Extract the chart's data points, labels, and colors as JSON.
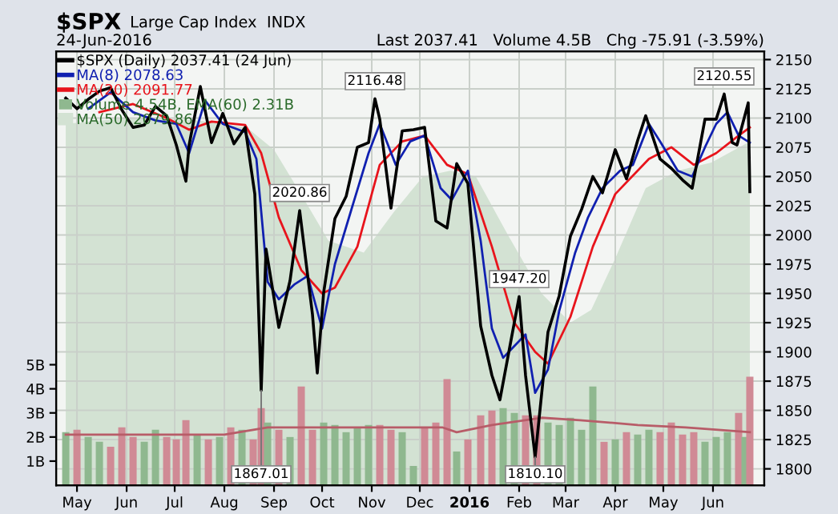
{
  "chart_data": {
    "type": "line",
    "title": "$SPX",
    "subtitle": "Large Cap Index  INDX",
    "annotations": [
      "24-Jun-2016",
      "Last 2037.41",
      "Volume 4.5B",
      "Chg -75.91 (-3.59%)",
      {
        "text": "1867.01",
        "x": "2015-08-24",
        "y": 1867.01
      },
      {
        "text": "2020.86",
        "x": "2015-09-17",
        "y": 2020.86
      },
      {
        "text": "2116.48",
        "x": "2015-11-03",
        "y": 2116.48
      },
      {
        "text": "1947.20",
        "x": "2016-02-01",
        "y": 1947.2
      },
      {
        "text": "1810.10",
        "x": "2016-02-11",
        "y": 1810.1
      },
      {
        "text": "2120.55",
        "x": "2016-06-08",
        "y": 2120.55
      }
    ],
    "xlim": [
      "2015-04-18",
      "2016-07-03"
    ],
    "xticks": [
      {
        "value": "2015-05-01",
        "label": "May"
      },
      {
        "value": "2015-06-01",
        "label": "Jun"
      },
      {
        "value": "2015-07-01",
        "label": "Jul"
      },
      {
        "value": "2015-08-01",
        "label": "Aug"
      },
      {
        "value": "2015-09-01",
        "label": "Sep"
      },
      {
        "value": "2015-10-01",
        "label": "Oct"
      },
      {
        "value": "2015-11-01",
        "label": "Nov"
      },
      {
        "value": "2015-12-01",
        "label": "Dec"
      },
      {
        "value": "2016-01-01",
        "label": "2016"
      },
      {
        "value": "2016-02-01",
        "label": "Feb"
      },
      {
        "value": "2016-03-01",
        "label": "Mar"
      },
      {
        "value": "2016-04-01",
        "label": "Apr"
      },
      {
        "value": "2016-05-01",
        "label": "May"
      },
      {
        "value": "2016-06-01",
        "label": "Jun"
      }
    ],
    "ylim": [
      1786,
      2157
    ],
    "yticks": [
      1800,
      1825,
      1850,
      1875,
      1900,
      1925,
      1950,
      1975,
      2000,
      2025,
      2050,
      2075,
      2100,
      2125,
      2150
    ],
    "y2lim": [
      0,
      18
    ],
    "y2ticks": [
      {
        "value": 1,
        "label": "1B"
      },
      {
        "value": 2,
        "label": "2B"
      },
      {
        "value": 3,
        "label": "3B"
      },
      {
        "value": 4,
        "label": "4B"
      },
      {
        "value": 5,
        "label": "5B"
      }
    ],
    "grid": true,
    "legend": "top left",
    "series": [
      {
        "name": "MA(50) 2079.86",
        "type": "area",
        "color": "#d3e2d3",
        "x": [
          "2015-04-24",
          "2015-06-01",
          "2015-07-15",
          "2015-08-15",
          "2015-09-01",
          "2015-09-20",
          "2015-10-05",
          "2015-10-27",
          "2015-11-15",
          "2015-12-03",
          "2015-12-20",
          "2016-01-05",
          "2016-01-25",
          "2016-02-15",
          "2016-03-04",
          "2016-03-17",
          "2016-04-01",
          "2016-04-20",
          "2016-05-10",
          "2016-05-31",
          "2016-06-24"
        ],
        "values": [
          2095,
          2100,
          2098,
          2092,
          2073,
          2030,
          1995,
          1985,
          2020,
          2050,
          2055,
          2050,
          2000,
          1950,
          1925,
          1936,
          1980,
          2040,
          2055,
          2062,
          2080
        ]
      },
      {
        "name": "Volume 4.54B, EMA(60) 2.31B",
        "type": "bar",
        "axis": "y2",
        "color": "#8fb88f",
        "x": [
          "2015-04-24",
          "2015-05-01",
          "2015-05-08",
          "2015-05-15",
          "2015-05-22",
          "2015-05-29",
          "2015-06-05",
          "2015-06-12",
          "2015-06-19",
          "2015-06-26",
          "2015-07-02",
          "2015-07-08",
          "2015-07-15",
          "2015-07-22",
          "2015-07-29",
          "2015-08-05",
          "2015-08-12",
          "2015-08-19",
          "2015-08-24",
          "2015-08-28",
          "2015-09-04",
          "2015-09-11",
          "2015-09-18",
          "2015-09-25",
          "2015-10-02",
          "2015-10-09",
          "2015-10-16",
          "2015-10-23",
          "2015-10-30",
          "2015-11-06",
          "2015-11-13",
          "2015-11-20",
          "2015-11-27",
          "2015-12-04",
          "2015-12-11",
          "2015-12-18",
          "2015-12-24",
          "2015-12-31",
          "2016-01-08",
          "2016-01-15",
          "2016-01-22",
          "2016-01-29",
          "2016-02-05",
          "2016-02-12",
          "2016-02-19",
          "2016-02-26",
          "2016-03-04",
          "2016-03-11",
          "2016-03-18",
          "2016-03-25",
          "2016-04-01",
          "2016-04-08",
          "2016-04-15",
          "2016-04-22",
          "2016-04-29",
          "2016-05-06",
          "2016-05-13",
          "2016-05-20",
          "2016-05-27",
          "2016-06-03",
          "2016-06-10",
          "2016-06-17",
          "2016-06-21",
          "2016-06-24"
        ],
        "values": [
          2.2,
          2.3,
          2.0,
          1.8,
          1.6,
          2.4,
          2.0,
          1.8,
          2.3,
          2.0,
          1.9,
          2.7,
          2.1,
          1.9,
          2.0,
          2.4,
          2.3,
          1.9,
          3.2,
          2.6,
          2.3,
          2.0,
          4.1,
          2.3,
          2.6,
          2.5,
          2.2,
          2.4,
          2.5,
          2.5,
          2.3,
          2.2,
          0.8,
          2.4,
          2.6,
          4.4,
          1.4,
          1.9,
          2.9,
          3.1,
          3.2,
          3.0,
          2.9,
          2.9,
          2.6,
          2.5,
          2.8,
          2.3,
          4.1,
          1.8,
          1.9,
          2.2,
          2.1,
          2.3,
          2.2,
          2.6,
          2.1,
          2.2,
          1.8,
          2.0,
          2.2,
          3.0,
          2.0,
          4.5
        ],
        "colors": [
          "#8fb88f",
          "#d08a95",
          "#8fb88f",
          "#8fb88f",
          "#d08a95",
          "#d08a95",
          "#d08a95",
          "#8fb88f",
          "#8fb88f",
          "#d08a95",
          "#d08a95",
          "#d08a95",
          "#8fb88f",
          "#d08a95",
          "#8fb88f",
          "#d08a95",
          "#8fb88f",
          "#d08a95",
          "#d08a95",
          "#8fb88f",
          "#d08a95",
          "#8fb88f",
          "#d08a95",
          "#d08a95",
          "#8fb88f",
          "#8fb88f",
          "#8fb88f",
          "#8fb88f",
          "#8fb88f",
          "#d08a95",
          "#d08a95",
          "#8fb88f",
          "#8fb88f",
          "#d08a95",
          "#d08a95",
          "#d08a95",
          "#8fb88f",
          "#d08a95",
          "#d08a95",
          "#d08a95",
          "#8fb88f",
          "#8fb88f",
          "#d08a95",
          "#d08a95",
          "#8fb88f",
          "#8fb88f",
          "#8fb88f",
          "#8fb88f",
          "#8fb88f",
          "#d08a95",
          "#8fb88f",
          "#d08a95",
          "#8fb88f",
          "#8fb88f",
          "#d08a95",
          "#d08a95",
          "#d08a95",
          "#d08a95",
          "#8fb88f",
          "#8fb88f",
          "#8fb88f",
          "#d08a95",
          "#8fb88f",
          "#d08a95"
        ]
      },
      {
        "type": "line",
        "axis": "y2",
        "color": "#b85c68",
        "x": [
          "2015-04-24",
          "2015-08-01",
          "2015-08-28",
          "2015-12-15",
          "2015-12-24",
          "2016-01-15",
          "2016-02-15",
          "2016-03-10",
          "2016-04-15",
          "2016-05-15",
          "2016-06-24"
        ],
        "values": [
          2.1,
          2.1,
          2.4,
          2.4,
          2.2,
          2.5,
          2.8,
          2.7,
          2.5,
          2.4,
          2.2
        ]
      },
      {
        "name": "MA(20) 2091.77",
        "color": "#e8141c",
        "x": [
          "2015-05-15",
          "2015-06-05",
          "2015-06-26",
          "2015-07-10",
          "2015-07-24",
          "2015-08-14",
          "2015-08-24",
          "2015-09-04",
          "2015-09-18",
          "2015-10-01",
          "2015-10-09",
          "2015-10-23",
          "2015-11-06",
          "2015-11-20",
          "2015-12-04",
          "2015-12-18",
          "2015-12-31",
          "2016-01-15",
          "2016-01-29",
          "2016-02-11",
          "2016-02-19",
          "2016-03-04",
          "2016-03-18",
          "2016-04-01",
          "2016-04-22",
          "2016-05-06",
          "2016-05-20",
          "2016-06-03",
          "2016-06-17",
          "2016-06-24"
        ],
        "values": [
          2105,
          2112,
          2100,
          2090,
          2097,
          2094,
          2070,
          2015,
          1970,
          1950,
          1955,
          1990,
          2060,
          2080,
          2085,
          2060,
          2052,
          1990,
          1925,
          1900,
          1890,
          1930,
          1990,
          2035,
          2065,
          2075,
          2060,
          2070,
          2085,
          2092
        ]
      },
      {
        "name": "MA(8) 2078.63",
        "color": "#1020b0",
        "x": [
          "2015-05-08",
          "2015-05-22",
          "2015-06-05",
          "2015-06-19",
          "2015-07-02",
          "2015-07-10",
          "2015-07-20",
          "2015-07-31",
          "2015-08-14",
          "2015-08-21",
          "2015-08-28",
          "2015-09-04",
          "2015-09-14",
          "2015-09-22",
          "2015-10-01",
          "2015-10-09",
          "2015-10-20",
          "2015-10-30",
          "2015-11-06",
          "2015-11-16",
          "2015-11-25",
          "2015-12-04",
          "2015-12-14",
          "2015-12-21",
          "2015-12-31",
          "2016-01-08",
          "2016-01-15",
          "2016-01-22",
          "2016-01-29",
          "2016-02-05",
          "2016-02-11",
          "2016-02-19",
          "2016-02-26",
          "2016-03-07",
          "2016-03-15",
          "2016-03-24",
          "2016-04-04",
          "2016-04-12",
          "2016-04-22",
          "2016-04-29",
          "2016-05-10",
          "2016-05-19",
          "2016-05-27",
          "2016-06-03",
          "2016-06-10",
          "2016-06-17",
          "2016-06-24"
        ],
        "values": [
          2108,
          2122,
          2105,
          2098,
          2095,
          2070,
          2115,
          2095,
          2088,
          2065,
          1960,
          1945,
          1958,
          1965,
          1920,
          1975,
          2025,
          2070,
          2095,
          2060,
          2080,
          2085,
          2040,
          2030,
          2055,
          1995,
          1920,
          1895,
          1905,
          1915,
          1865,
          1885,
          1935,
          1985,
          2015,
          2040,
          2055,
          2060,
          2095,
          2080,
          2055,
          2050,
          2075,
          2095,
          2105,
          2085,
          2079
        ]
      },
      {
        "name": "$SPX (Daily) 2037.41 (24 Jun)",
        "color": "#000000",
        "x": [
          "2015-04-24",
          "2015-05-01",
          "2015-05-08",
          "2015-05-15",
          "2015-05-22",
          "2015-05-29",
          "2015-06-05",
          "2015-06-12",
          "2015-06-19",
          "2015-06-26",
          "2015-07-02",
          "2015-07-08",
          "2015-07-10",
          "2015-07-17",
          "2015-07-24",
          "2015-07-31",
          "2015-08-07",
          "2015-08-14",
          "2015-08-20",
          "2015-08-24",
          "2015-08-27",
          "2015-09-04",
          "2015-09-11",
          "2015-09-17",
          "2015-09-25",
          "2015-09-28",
          "2015-10-02",
          "2015-10-09",
          "2015-10-16",
          "2015-10-23",
          "2015-10-30",
          "2015-11-03",
          "2015-11-06",
          "2015-11-13",
          "2015-11-20",
          "2015-11-27",
          "2015-12-04",
          "2015-12-11",
          "2015-12-18",
          "2015-12-24",
          "2015-12-31",
          "2016-01-08",
          "2016-01-15",
          "2016-01-20",
          "2016-02-01",
          "2016-02-05",
          "2016-02-11",
          "2016-02-19",
          "2016-02-26",
          "2016-03-04",
          "2016-03-11",
          "2016-03-18",
          "2016-03-24",
          "2016-04-01",
          "2016-04-08",
          "2016-04-15",
          "2016-04-20",
          "2016-04-29",
          "2016-05-06",
          "2016-05-13",
          "2016-05-19",
          "2016-05-27",
          "2016-06-03",
          "2016-06-08",
          "2016-06-13",
          "2016-06-16",
          "2016-06-23",
          "2016-06-24"
        ],
        "values": [
          2117,
          2108,
          2116,
          2123,
          2126,
          2107,
          2092,
          2094,
          2110,
          2102,
          2077,
          2046,
          2077,
          2127,
          2079,
          2104,
          2078,
          2092,
          2035,
          1867.01,
          1988,
          1921,
          1961,
          2020.86,
          1932,
          1882,
          1951,
          2014,
          2033,
          2075,
          2079,
          2116.48,
          2099,
          2023,
          2089,
          2090,
          2092,
          2012,
          2006,
          2061,
          2044,
          1922,
          1880,
          1859,
          1947.2,
          1880,
          1810.1,
          1917,
          1948,
          1999,
          2022,
          2050,
          2036,
          2073,
          2048,
          2081,
          2102,
          2065,
          2057,
          2047,
          2040,
          2099,
          2099,
          2120.55,
          2079,
          2077,
          2113,
          2037
        ]
      }
    ]
  }
}
